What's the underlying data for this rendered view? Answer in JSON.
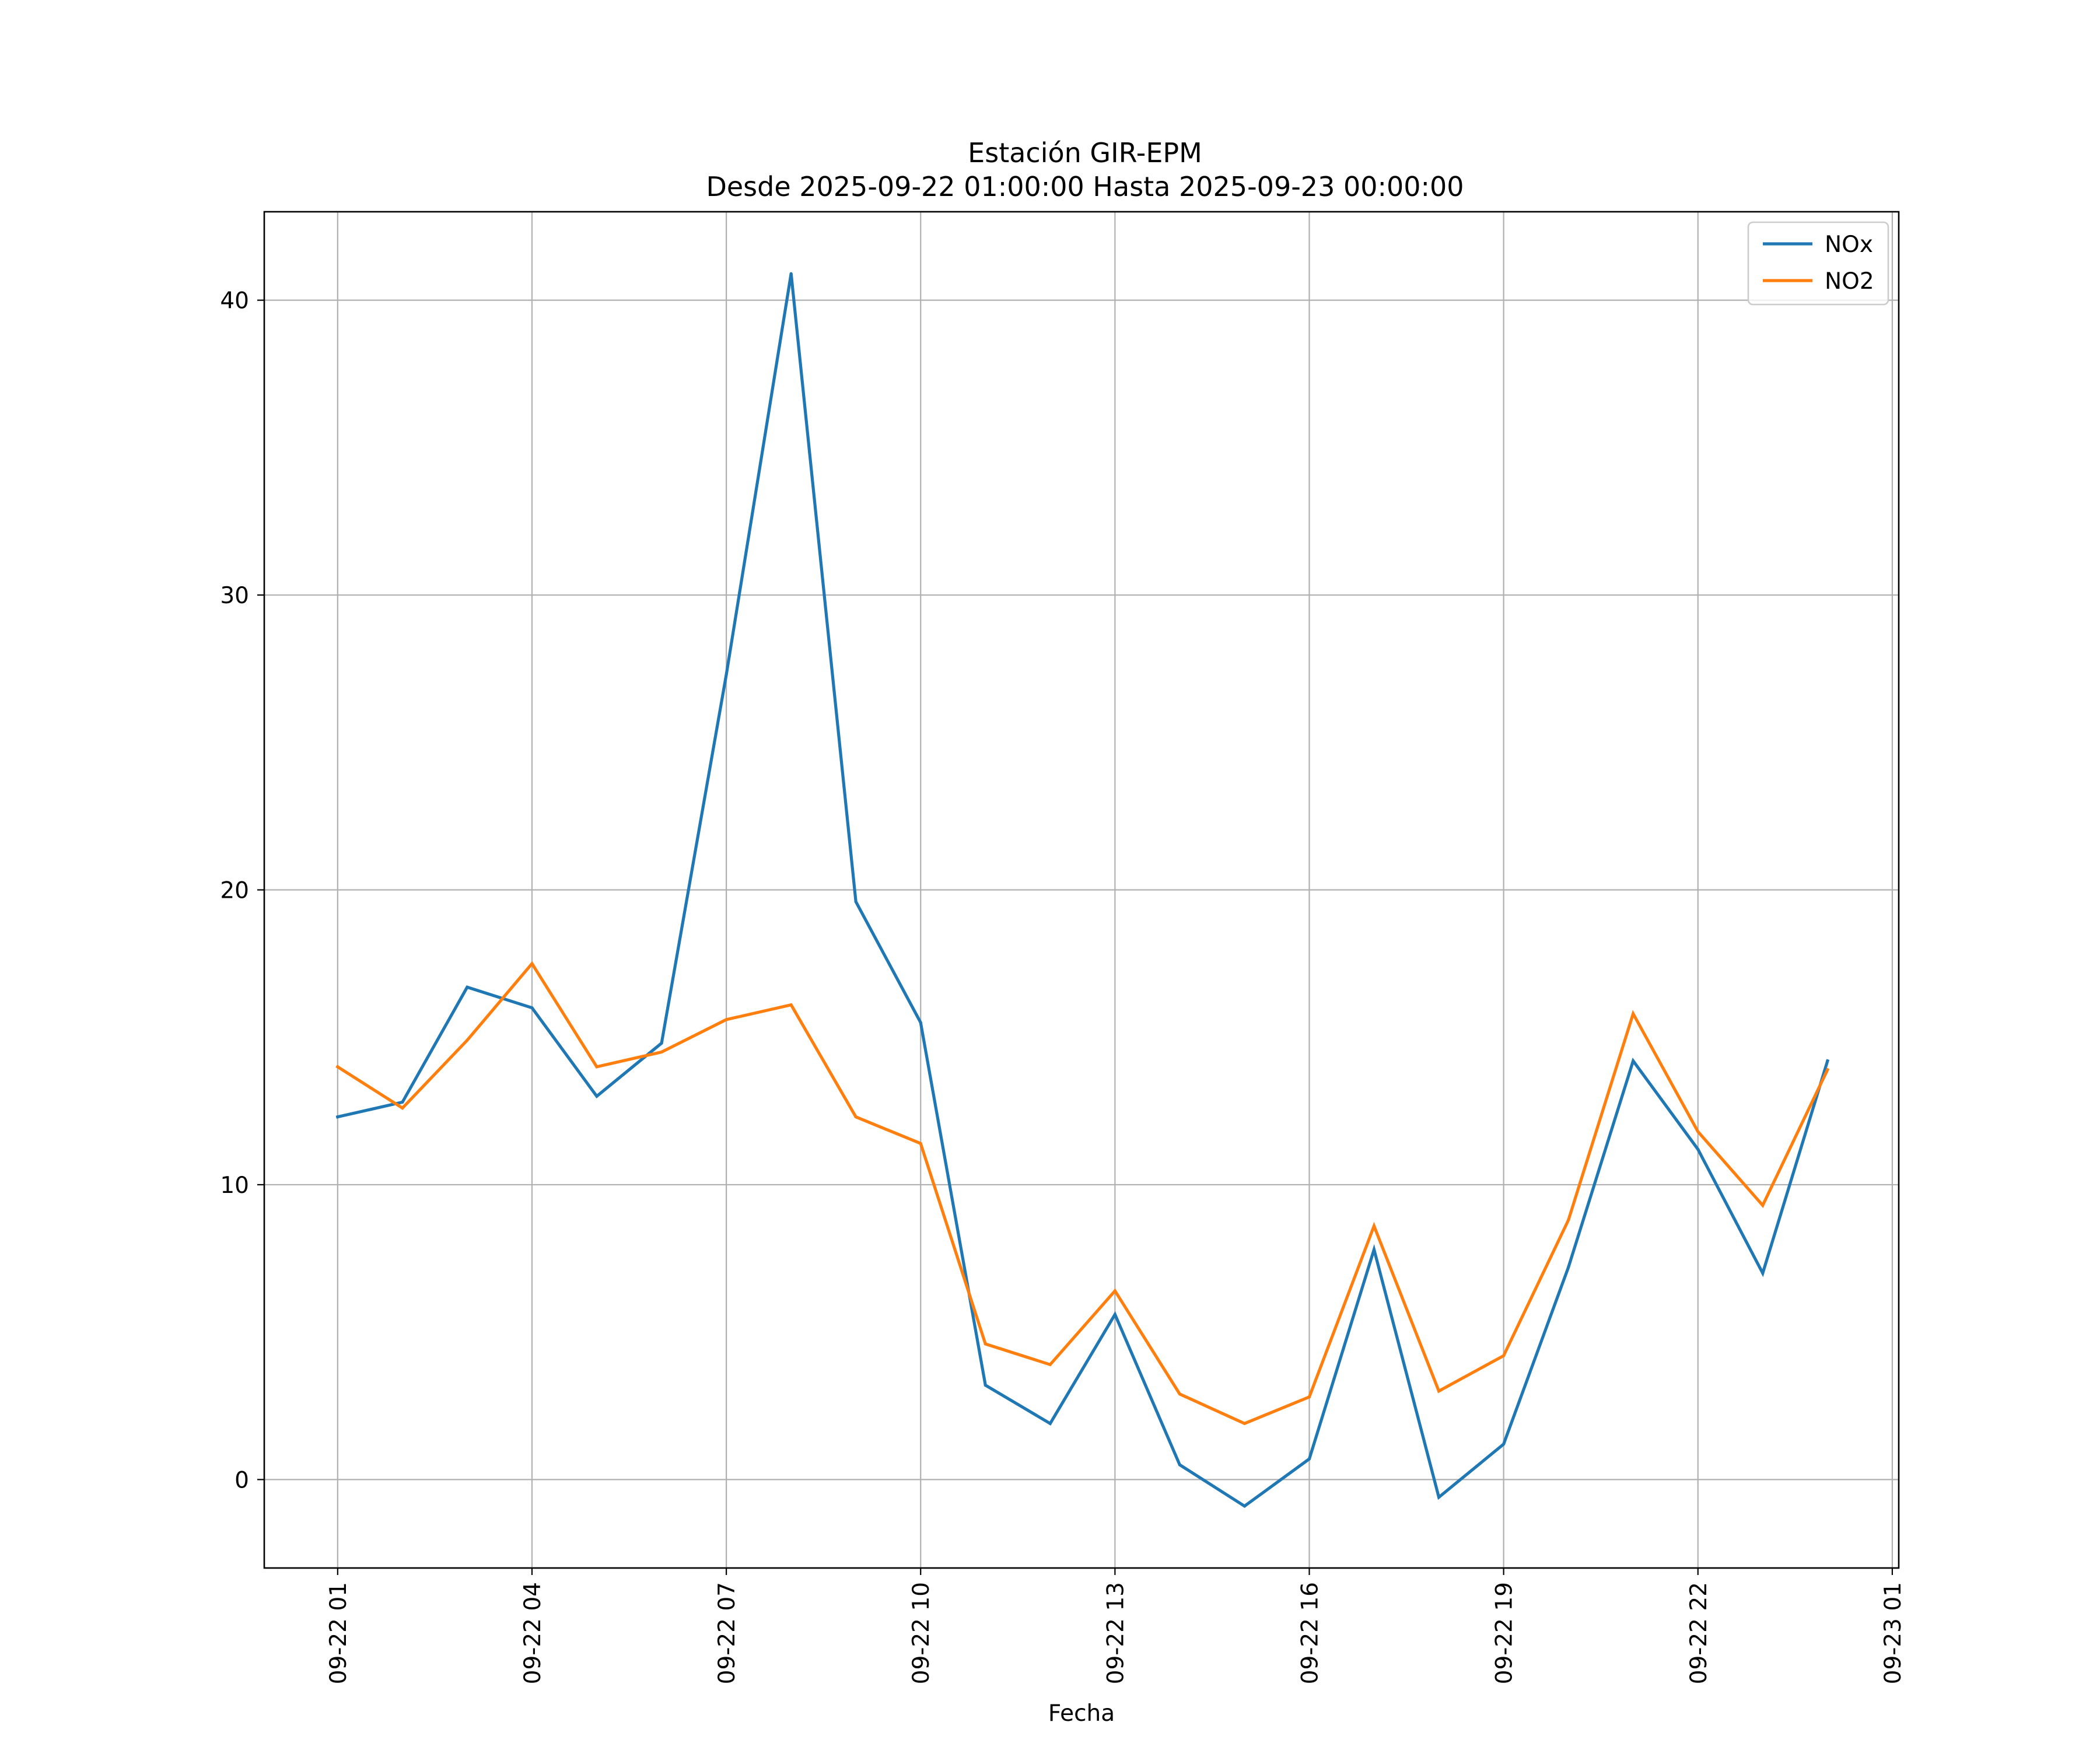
{
  "chart_data": {
    "type": "line",
    "title": "Estación GIR-EPM",
    "subtitle": "Desde 2025-09-22 01:00:00 Hasta 2025-09-23 00:00:00",
    "xlabel": "Fecha",
    "ylabel": "",
    "x": [
      "2025-09-22 01:00",
      "2025-09-22 02:00",
      "2025-09-22 03:00",
      "2025-09-22 04:00",
      "2025-09-22 05:00",
      "2025-09-22 06:00",
      "2025-09-22 07:00",
      "2025-09-22 08:00",
      "2025-09-22 09:00",
      "2025-09-22 10:00",
      "2025-09-22 11:00",
      "2025-09-22 12:00",
      "2025-09-22 13:00",
      "2025-09-22 14:00",
      "2025-09-22 15:00",
      "2025-09-22 16:00",
      "2025-09-22 17:00",
      "2025-09-22 18:00",
      "2025-09-22 19:00",
      "2025-09-22 20:00",
      "2025-09-22 21:00",
      "2025-09-22 22:00",
      "2025-09-22 23:00",
      "2025-09-23 00:00"
    ],
    "x_ticks": [
      "2025-09-22 01:00",
      "2025-09-22 04:00",
      "2025-09-22 07:00",
      "2025-09-22 10:00",
      "2025-09-22 13:00",
      "2025-09-22 16:00",
      "2025-09-22 19:00",
      "2025-09-22 22:00",
      "2025-09-23 01:00"
    ],
    "x_tick_labels": [
      "09-22 01",
      "09-22 04",
      "09-22 07",
      "09-22 10",
      "09-22 13",
      "09-22 16",
      "09-22 19",
      "09-22 22",
      "09-23 01"
    ],
    "xlim": [
      "2025-09-21 23:52",
      "2025-09-23 01:06"
    ],
    "ylim": [
      -3.0,
      43.0
    ],
    "y_ticks": [
      0,
      10,
      20,
      30,
      40
    ],
    "y_tick_labels": [
      "0",
      "10",
      "20",
      "30",
      "40"
    ],
    "grid": true,
    "legend_position": "top-right",
    "series": [
      {
        "name": "NOx",
        "color": "#1f77b4",
        "values": [
          12.3,
          12.8,
          16.7,
          16.0,
          13.0,
          14.8,
          27.3,
          40.9,
          19.6,
          15.5,
          3.2,
          1.9,
          5.6,
          0.5,
          -0.9,
          0.7,
          7.8,
          -0.6,
          1.2,
          7.2,
          14.2,
          11.2,
          7.0,
          14.2
        ]
      },
      {
        "name": "NO2",
        "color": "#ff7f0e",
        "values": [
          14.0,
          12.6,
          14.9,
          17.5,
          14.0,
          14.5,
          15.6,
          16.1,
          12.3,
          11.4,
          4.6,
          3.9,
          6.4,
          2.9,
          1.9,
          2.8,
          8.6,
          3.0,
          4.2,
          8.8,
          15.8,
          11.8,
          9.3,
          13.9
        ]
      }
    ]
  }
}
